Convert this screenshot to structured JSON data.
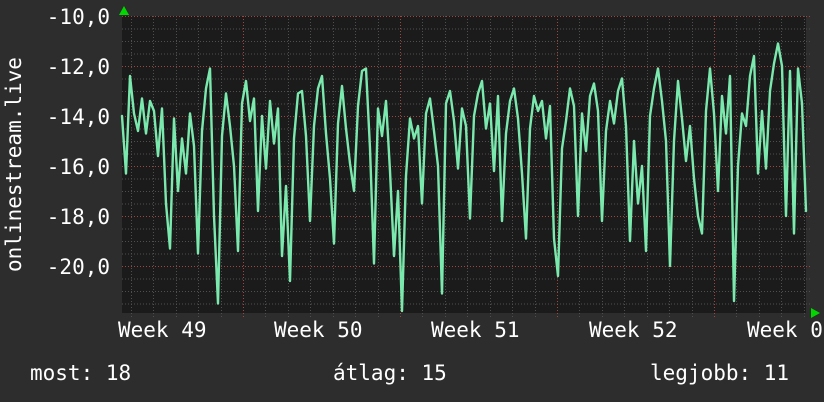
{
  "colors": {
    "background": "#2d2d2d",
    "plot_background": "#1b1b1b",
    "grid_minor": "#4f4f4f",
    "grid_major": "#a04540",
    "series_line": "#7be9ad",
    "axis_arrow": "#00d800",
    "text": "#ffffff"
  },
  "legend": {
    "most_label": "most: 18",
    "atlag_label": "átlag: 15",
    "legjobb_label": "legjobb: 11"
  },
  "chart_data": {
    "type": "line",
    "title": "",
    "ylabel": "onlinestream.live",
    "xlabel": "",
    "x_ticks": [
      "Week 49",
      "Week 50",
      "Week 51",
      "Week 52",
      "Week 0"
    ],
    "y_ticks": [
      "-10,0",
      "-12,0",
      "-14,0",
      "-16,0",
      "-18,0",
      "-20,0"
    ],
    "y_tick_values": [
      -10,
      -12,
      -14,
      -16,
      -18,
      -20
    ],
    "ylim": [
      -21.88,
      -10
    ],
    "grid": {
      "shown": true,
      "y_minor_step": 0.5,
      "y_major_step": 2,
      "x_minor_unit": "day",
      "x_major_unit": "week"
    },
    "legend_position": "bottom",
    "stats": {
      "most": 18,
      "atlag": 15,
      "legjobb": 11
    },
    "series": [
      {
        "name": "onlinestream.live",
        "color": "#7be9ad",
        "x_spacing": "uniform over plotted window (Week 49 → Week 01)",
        "values": [
          -14.0,
          -16.3,
          -12.4,
          -13.9,
          -14.6,
          -13.3,
          -14.7,
          -13.4,
          -13.8,
          -15.6,
          -13.7,
          -17.5,
          -19.3,
          -14.1,
          -17.0,
          -14.9,
          -16.3,
          -13.9,
          -15.2,
          -19.5,
          -14.6,
          -12.9,
          -12.1,
          -18.0,
          -21.5,
          -14.8,
          -13.1,
          -14.4,
          -16.0,
          -19.4,
          -13.5,
          -12.6,
          -14.2,
          -13.3,
          -17.8,
          -14.0,
          -16.1,
          -13.4,
          -15.1,
          -13.7,
          -19.6,
          -16.8,
          -20.6,
          -14.9,
          -13.1,
          -13.0,
          -14.8,
          -18.2,
          -14.4,
          -12.9,
          -12.4,
          -14.7,
          -16.5,
          -19.1,
          -14.3,
          -12.8,
          -14.5,
          -15.9,
          -17.0,
          -13.6,
          -12.2,
          -12.1,
          -15.3,
          -19.9,
          -13.7,
          -14.8,
          -13.4,
          -16.2,
          -19.6,
          -17.0,
          -21.8,
          -16.4,
          -14.1,
          -14.9,
          -14.4,
          -17.5,
          -13.9,
          -13.3,
          -14.6,
          -16.0,
          -21.1,
          -13.5,
          -13.0,
          -14.2,
          -16.1,
          -13.7,
          -14.4,
          -18.1,
          -14.0,
          -13.1,
          -12.6,
          -14.5,
          -13.5,
          -16.2,
          -13.2,
          -18.2,
          -14.7,
          -13.4,
          -12.9,
          -14.1,
          -16.3,
          -18.9,
          -14.5,
          -13.2,
          -13.8,
          -13.4,
          -14.9,
          -13.6,
          -18.9,
          -20.4,
          -15.3,
          -14.2,
          -12.9,
          -13.6,
          -18.0,
          -13.9,
          -15.4,
          -13.2,
          -12.7,
          -13.8,
          -18.2,
          -14.6,
          -13.4,
          -14.3,
          -13.0,
          -12.5,
          -14.4,
          -19.0,
          -15.0,
          -17.5,
          -16.0,
          -19.4,
          -14.0,
          -12.9,
          -12.1,
          -13.4,
          -15.0,
          -20.0,
          -15.0,
          -12.6,
          -14.1,
          -15.8,
          -14.4,
          -16.5,
          -18.0,
          -18.7,
          -13.8,
          -12.1,
          -13.9,
          -17.0,
          -13.2,
          -14.7,
          -12.4,
          -21.4,
          -16.0,
          -13.9,
          -14.4,
          -12.4,
          -11.6,
          -16.3,
          -13.8,
          -16.1,
          -13.0,
          -11.9,
          -11.1,
          -12.0,
          -18.0,
          -12.2,
          -18.7,
          -12.1,
          -13.5,
          -17.8
        ]
      }
    ]
  }
}
